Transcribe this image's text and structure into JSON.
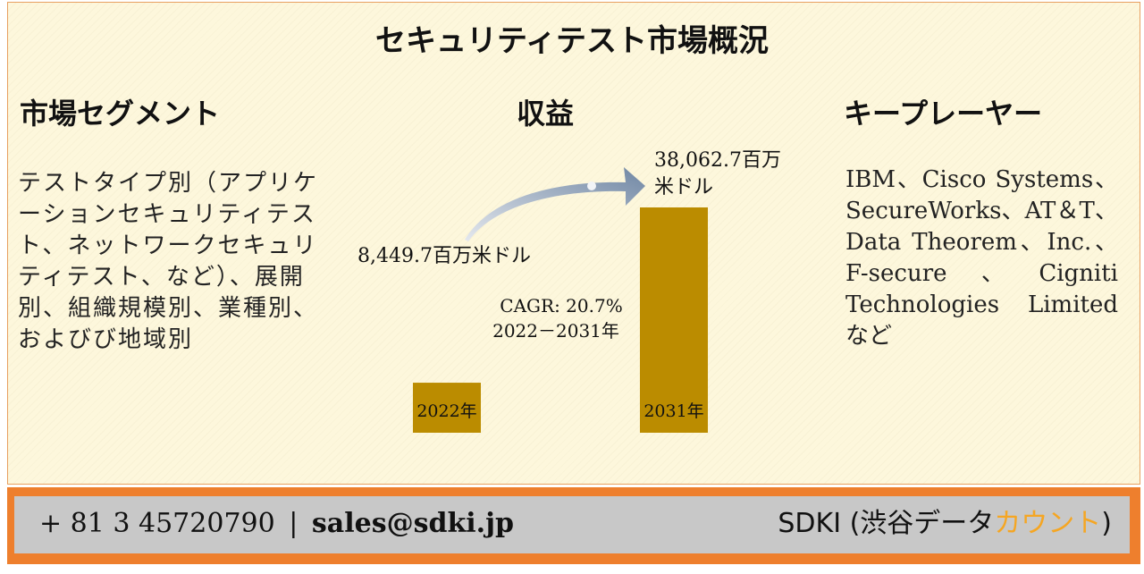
{
  "title": "セキュリティテスト市場概況",
  "segments": {
    "heading": "市場セグメント",
    "text": "テストタイプ別（アプリケーションセキュリティテスト、ネットワークセキュリティテスト、など）、展開別、組織規模別、業種別、およびび地域別"
  },
  "revenue": {
    "heading": "収益"
  },
  "players": {
    "heading": "キープレーヤー",
    "text": "IBM、Cisco Systems、SecureWorks、AT＆T、Data Theorem、Inc.、F-secure、Cigniti Technologies Limited など"
  },
  "chart_data": {
    "type": "bar",
    "categories": [
      "2022年",
      "2031年"
    ],
    "values": [
      8449.7,
      38062.7
    ],
    "value_labels": [
      "8,449.7百万米ドル",
      "38,062.7百万米ドル"
    ],
    "annotation": [
      "CAGR: 20.7%",
      "2022－2031年"
    ],
    "bar_color": "#bb8c00"
  },
  "footer": {
    "phone": "+ 81 3 45720790",
    "separator": "|",
    "email": "sales@sdki.jp",
    "brand_main": "SDKI (渋谷データ",
    "brand_accent": "カウント",
    "brand_close": ")",
    "band_color": "#ee7f2d"
  }
}
